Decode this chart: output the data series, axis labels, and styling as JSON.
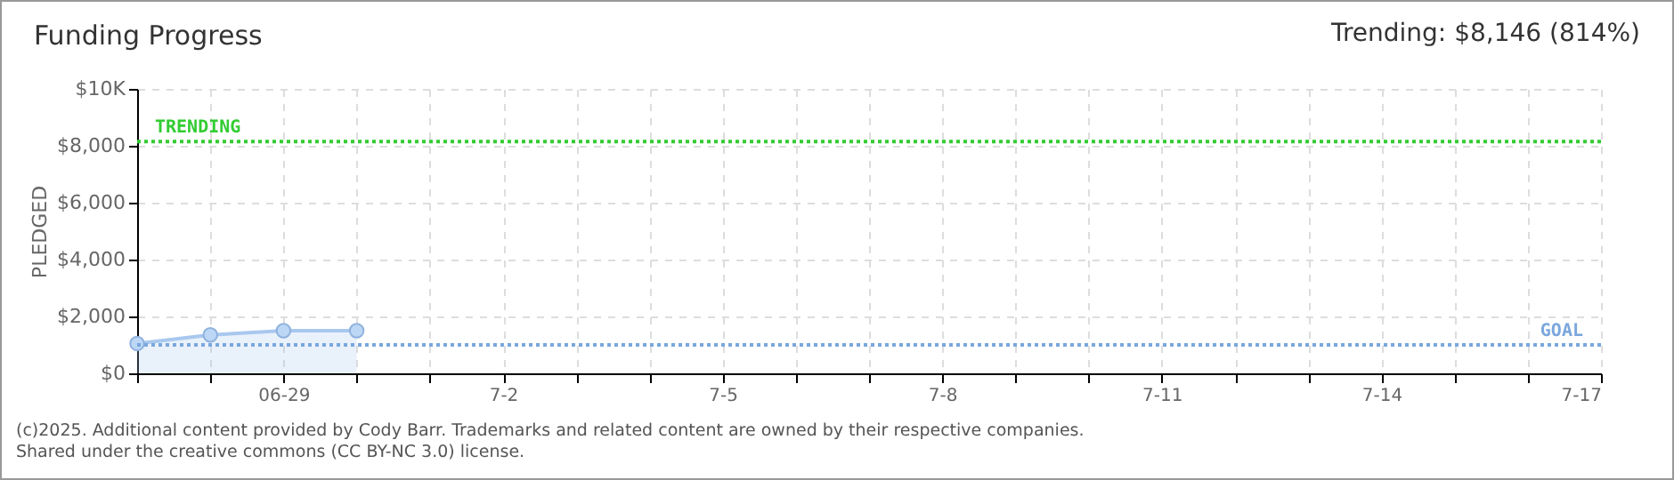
{
  "chart_data": {
    "type": "area",
    "title": "Funding Progress",
    "subtitle": "Trending: $8,146 (814%)",
    "ylabel": "PLEDGED",
    "x": [
      "2025-06-27",
      "2025-06-28",
      "2025-06-29",
      "2025-06-30"
    ],
    "series": [
      {
        "color": "#a9c8ef",
        "values": [
          1050,
          1350,
          1500,
          1500
        ]
      }
    ],
    "xlim": [
      "2025-06-27",
      "2025-07-17"
    ],
    "xticks": [
      {
        "value": "2025-06-27",
        "label": null
      },
      {
        "value": "2025-06-28",
        "label": null
      },
      {
        "value": "2025-06-29",
        "label": "06-29"
      },
      {
        "value": "2025-06-30",
        "label": null
      },
      {
        "value": "2025-07-01",
        "label": null
      },
      {
        "value": "2025-07-02",
        "label": "7-2"
      },
      {
        "value": "2025-07-03",
        "label": null
      },
      {
        "value": "2025-07-04",
        "label": null
      },
      {
        "value": "2025-07-05",
        "label": "7-5"
      },
      {
        "value": "2025-07-06",
        "label": null
      },
      {
        "value": "2025-07-07",
        "label": null
      },
      {
        "value": "2025-07-08",
        "label": "7-8"
      },
      {
        "value": "2025-07-09",
        "label": null
      },
      {
        "value": "2025-07-10",
        "label": null
      },
      {
        "value": "2025-07-11",
        "label": "7-11"
      },
      {
        "value": "2025-07-12",
        "label": null
      },
      {
        "value": "2025-07-13",
        "label": null
      },
      {
        "value": "2025-07-14",
        "label": "7-14"
      },
      {
        "value": "2025-07-15",
        "label": null
      },
      {
        "value": "2025-07-16",
        "label": null
      },
      {
        "value": "2025-07-17",
        "label": "7-17"
      }
    ],
    "ylim": [
      0,
      10000
    ],
    "yticks": [
      {
        "value": 0,
        "label": "$0"
      },
      {
        "value": 2000,
        "label": "$2,000"
      },
      {
        "value": 4000,
        "label": "$4,000"
      },
      {
        "value": 6000,
        "label": "$6,000"
      },
      {
        "value": 8000,
        "label": "$8,000"
      },
      {
        "value": 10000,
        "label": "$10K"
      }
    ],
    "ref_lines": [
      {
        "axis": "y",
        "value": 8146,
        "label": "TRENDING",
        "color": "#33cc33",
        "line_style": "dotted"
      },
      {
        "axis": "y",
        "value": 1000,
        "label": "GOAL",
        "color": "#7aa7dd",
        "line_style": "dotted"
      }
    ],
    "grid": true,
    "marker": "circle",
    "annotations": [
      "(c)2025. Additional content provided by Cody Barr. Trademarks and related content are owned by their respective companies.",
      "Shared under the creative commons (CC BY-NC 3.0) license."
    ]
  }
}
